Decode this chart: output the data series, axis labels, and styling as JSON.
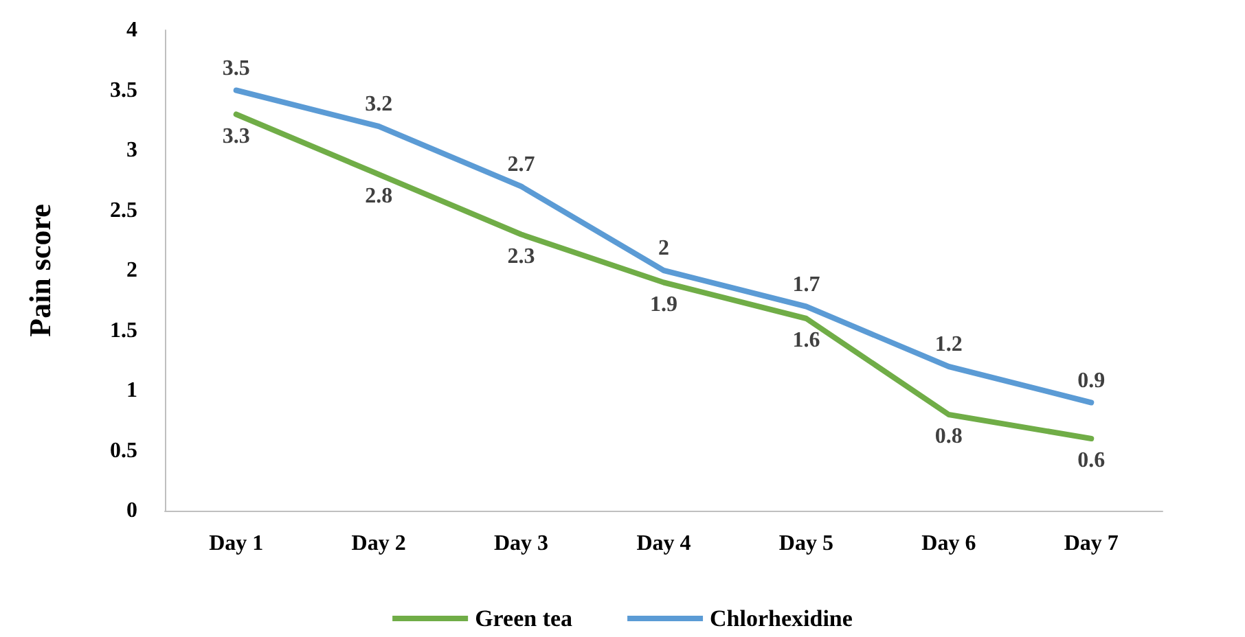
{
  "chart_data": {
    "type": "line",
    "ylabel": "Pain score",
    "categories": [
      "Day 1",
      "Day 2",
      "Day 3",
      "Day 4",
      "Day 5",
      "Day 6",
      "Day 7"
    ],
    "series": [
      {
        "name": "Green tea",
        "color": "#70ad47",
        "values": [
          3.3,
          2.8,
          2.3,
          1.9,
          1.6,
          0.8,
          0.6
        ]
      },
      {
        "name": "Chlorhexidine",
        "color": "#5b9bd5",
        "values": [
          3.5,
          3.2,
          2.7,
          2,
          1.7,
          1.2,
          0.9
        ]
      }
    ],
    "ylim": [
      0,
      4
    ],
    "yticks": [
      0,
      0.5,
      1,
      1.5,
      2,
      2.5,
      3,
      3.5,
      4
    ],
    "grid": false,
    "legend": "bottom",
    "data_labels": true,
    "marker": "none",
    "line_style": "solid"
  }
}
